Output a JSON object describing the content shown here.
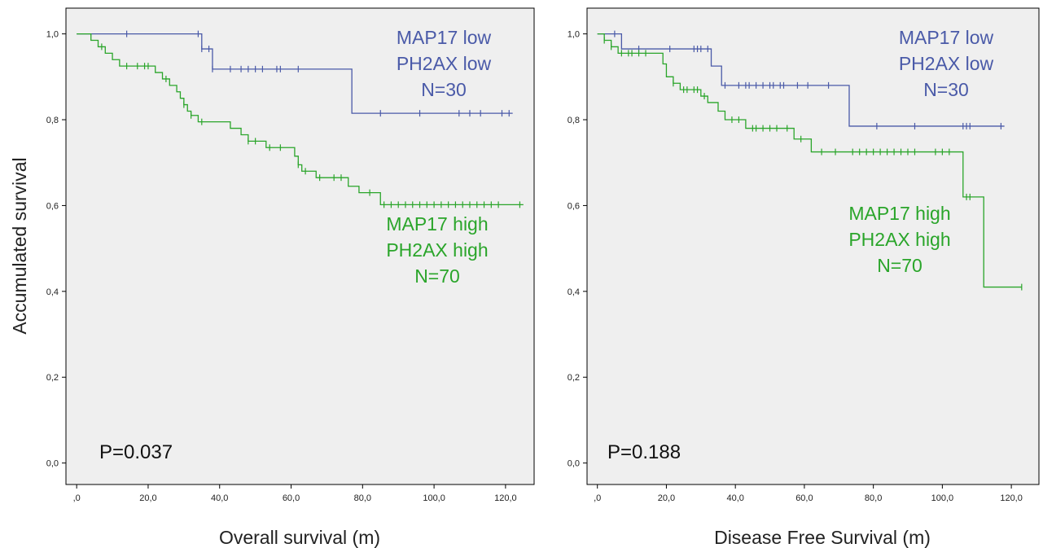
{
  "chart_data": [
    {
      "type": "line",
      "subtype": "kaplan-meier",
      "xlabel": "Overall  survival  (m)",
      "ylabel": "Accumulated  survival",
      "xlim": [
        -3,
        128
      ],
      "ylim": [
        -0.05,
        1.06
      ],
      "x_ticks": [
        0,
        20,
        40,
        60,
        80,
        100,
        120
      ],
      "x_tick_labels": [
        ",0",
        "20,0",
        "40,0",
        "60,0",
        "80,0",
        "100,0",
        "120,0"
      ],
      "y_ticks": [
        0,
        0.2,
        0.4,
        0.6,
        0.8,
        1.0
      ],
      "y_tick_labels": [
        "0,0",
        "0,2",
        "0,4",
        "0,6",
        "0,8",
        "1,0"
      ],
      "grid": false,
      "p_value_text": "P=0.037",
      "series": [
        {
          "color": "#4a5aa8",
          "label_lines": [
            "MAP17  low",
            "PH2AX  low",
            "N=30"
          ],
          "steps": [
            [
              0,
              1.0
            ],
            [
              35,
              0.965
            ],
            [
              38,
              0.918
            ],
            [
              77,
              0.815
            ],
            [
              122,
              0.815
            ]
          ],
          "censor_x": [
            14,
            34,
            35,
            37,
            38,
            43,
            46,
            48,
            50,
            52,
            56,
            57,
            62,
            85,
            96,
            107,
            110,
            113,
            119,
            121
          ]
        },
        {
          "color": "#2aa52a",
          "label_lines": [
            "MAP17  high",
            "PH2AX  high",
            "N=70"
          ],
          "steps": [
            [
              0,
              1.0
            ],
            [
              4,
              0.985
            ],
            [
              6,
              0.97
            ],
            [
              8,
              0.955
            ],
            [
              10,
              0.94
            ],
            [
              12,
              0.925
            ],
            [
              22,
              0.91
            ],
            [
              24,
              0.895
            ],
            [
              26,
              0.88
            ],
            [
              28,
              0.865
            ],
            [
              29,
              0.85
            ],
            [
              30,
              0.835
            ],
            [
              31,
              0.82
            ],
            [
              32,
              0.81
            ],
            [
              34,
              0.795
            ],
            [
              43,
              0.78
            ],
            [
              46,
              0.765
            ],
            [
              48,
              0.75
            ],
            [
              53,
              0.735
            ],
            [
              61,
              0.715
            ],
            [
              62,
              0.695
            ],
            [
              63,
              0.68
            ],
            [
              67,
              0.665
            ],
            [
              76,
              0.645
            ],
            [
              79,
              0.63
            ],
            [
              85,
              0.602
            ],
            [
              125,
              0.602
            ]
          ],
          "censor_x": [
            7,
            14,
            17,
            19,
            20,
            25,
            30,
            32,
            35,
            48,
            50,
            54,
            57,
            62,
            64,
            68,
            72,
            74,
            82,
            86,
            88,
            90,
            92,
            94,
            96,
            98,
            100,
            102,
            104,
            106,
            108,
            110,
            112,
            114,
            116,
            118,
            124
          ]
        }
      ]
    },
    {
      "type": "line",
      "subtype": "kaplan-meier",
      "xlabel": "Disease Free Survival  (m)",
      "ylabel": "",
      "xlim": [
        -3,
        128
      ],
      "ylim": [
        -0.05,
        1.06
      ],
      "x_ticks": [
        0,
        20,
        40,
        60,
        80,
        100,
        120
      ],
      "x_tick_labels": [
        ",0",
        "20,0",
        "40,0",
        "60,0",
        "80,0",
        "100,0",
        "120,0"
      ],
      "y_ticks": [
        0,
        0.2,
        0.4,
        0.6,
        0.8,
        1.0
      ],
      "y_tick_labels": [
        "0,0",
        "0,2",
        "0,4",
        "0,6",
        "0,8",
        "1,0"
      ],
      "grid": false,
      "p_value_text": "P=0.188",
      "series": [
        {
          "color": "#4a5aa8",
          "label_lines": [
            "MAP17  low",
            "PH2AX  low",
            "N=30"
          ],
          "steps": [
            [
              0,
              1.0
            ],
            [
              7,
              0.965
            ],
            [
              33,
              0.925
            ],
            [
              36,
              0.88
            ],
            [
              73,
              0.785
            ],
            [
              118,
              0.785
            ]
          ],
          "censor_x": [
            5,
            12,
            21,
            28,
            29,
            30,
            32,
            37,
            41,
            43,
            44,
            46,
            48,
            50,
            51,
            53,
            54,
            58,
            61,
            67,
            81,
            92,
            106,
            107,
            108,
            117
          ]
        },
        {
          "color": "#2aa52a",
          "label_lines": [
            "MAP17  high",
            "PH2AX  high",
            "N=70"
          ],
          "steps": [
            [
              0,
              1.0
            ],
            [
              2,
              0.985
            ],
            [
              4,
              0.97
            ],
            [
              6,
              0.955
            ],
            [
              19,
              0.93
            ],
            [
              20,
              0.9
            ],
            [
              22,
              0.885
            ],
            [
              24,
              0.87
            ],
            [
              30,
              0.855
            ],
            [
              32,
              0.84
            ],
            [
              35,
              0.82
            ],
            [
              37,
              0.8
            ],
            [
              43,
              0.78
            ],
            [
              57,
              0.755
            ],
            [
              62,
              0.725
            ],
            [
              106,
              0.62
            ],
            [
              112,
              0.41
            ],
            [
              123,
              0.41
            ]
          ],
          "censor_x": [
            2,
            4,
            7,
            9,
            10,
            12,
            14,
            22,
            25,
            26,
            28,
            29,
            31,
            39,
            41,
            45,
            46,
            48,
            50,
            52,
            55,
            59,
            65,
            69,
            74,
            76,
            78,
            80,
            82,
            84,
            86,
            88,
            90,
            92,
            98,
            100,
            102,
            107,
            108,
            123
          ]
        }
      ]
    }
  ]
}
